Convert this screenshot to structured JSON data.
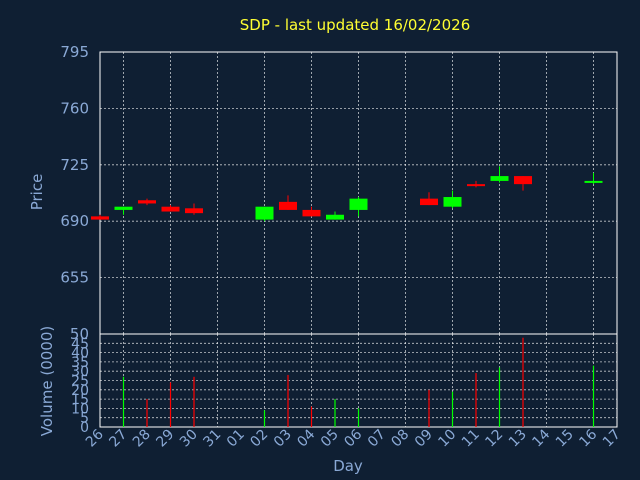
{
  "title": "SDP - last updated 16/02/2026",
  "chart_data": [
    {
      "type": "candlestick",
      "ylabel": "Price",
      "ylim": [
        620,
        795
      ],
      "yticks": [
        655,
        690,
        725,
        760,
        795
      ],
      "grid": true,
      "up_color": "#00ff00",
      "down_color": "#ff0000",
      "candles": [
        {
          "day": "26",
          "open": 693,
          "high": 694,
          "low": 691,
          "close": 691
        },
        {
          "day": "27",
          "open": 697,
          "high": 699,
          "low": 694,
          "close": 699
        },
        {
          "day": "28",
          "open": 703,
          "high": 704,
          "low": 700,
          "close": 701
        },
        {
          "day": "29",
          "open": 699,
          "high": 700,
          "low": 696,
          "close": 696
        },
        {
          "day": "30",
          "open": 698,
          "high": 701,
          "low": 694,
          "close": 695
        },
        {
          "day": "02",
          "open": 691,
          "high": 699,
          "low": 690,
          "close": 699
        },
        {
          "day": "03",
          "open": 702,
          "high": 706,
          "low": 697,
          "close": 697
        },
        {
          "day": "04",
          "open": 697,
          "high": 699,
          "low": 693,
          "close": 693
        },
        {
          "day": "05",
          "open": 691,
          "high": 696,
          "low": 691,
          "close": 694
        },
        {
          "day": "06",
          "open": 697,
          "high": 705,
          "low": 693,
          "close": 704
        },
        {
          "day": "09",
          "open": 704,
          "high": 708,
          "low": 700,
          "close": 700
        },
        {
          "day": "10",
          "open": 699,
          "high": 709,
          "low": 698,
          "close": 705
        },
        {
          "day": "11",
          "open": 713,
          "high": 715,
          "low": 711,
          "close": 712
        },
        {
          "day": "12",
          "open": 715,
          "high": 724,
          "low": 714,
          "close": 718
        },
        {
          "day": "13",
          "open": 718,
          "high": 718,
          "low": 709,
          "close": 713
        },
        {
          "day": "16",
          "open": 714,
          "high": 720,
          "low": 713,
          "close": 715
        }
      ]
    },
    {
      "type": "bar",
      "xlabel": "Day",
      "ylabel": "Volume (0000)",
      "ylim": [
        0,
        50
      ],
      "yticks": [
        0,
        5,
        10,
        15,
        20,
        25,
        30,
        35,
        40,
        45,
        50
      ],
      "grid": true,
      "days": [
        "26",
        "27",
        "28",
        "29",
        "30",
        "31",
        "01",
        "02",
        "03",
        "04",
        "05",
        "06",
        "07",
        "08",
        "09",
        "10",
        "11",
        "12",
        "13",
        "14",
        "15",
        "16",
        "17"
      ],
      "values": [
        0,
        27,
        15,
        24,
        27,
        0,
        0,
        9,
        28,
        11,
        15,
        10,
        0,
        0,
        20,
        19,
        29,
        32,
        48,
        0,
        0,
        33,
        0
      ],
      "directions": [
        "down",
        "up",
        "down",
        "down",
        "down",
        "",
        "",
        "up",
        "down",
        "down",
        "up",
        "up",
        "",
        "",
        "down",
        "up",
        "down",
        "up",
        "down",
        "",
        "",
        "up",
        ""
      ]
    }
  ]
}
